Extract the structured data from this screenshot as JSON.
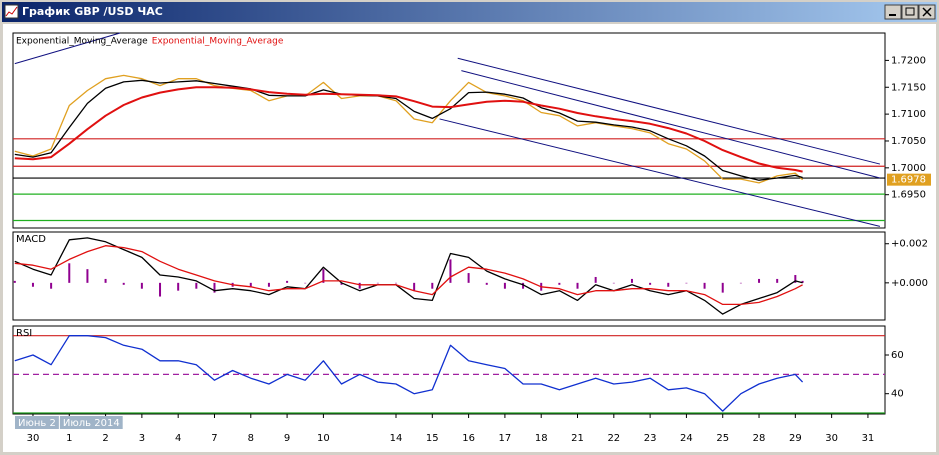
{
  "window": {
    "title": "График GBP /USD ЧАС"
  },
  "overlay": [
    "Июнь 2",
    "Июль 2014"
  ],
  "chart_data": [
    {
      "type": "line",
      "x": [
        -0.5,
        0,
        0.5,
        1,
        1.5,
        2,
        2.5,
        3,
        3.5,
        4,
        4.5,
        5,
        5.5,
        6,
        6.5,
        7,
        7.5,
        8,
        8.5,
        9,
        9.5,
        10,
        10.5,
        11,
        11.5,
        12,
        12.5,
        13,
        13.5,
        14,
        14.5,
        15,
        15.5,
        16,
        16.5,
        17,
        17.5,
        18,
        18.5,
        19,
        19.5,
        20,
        20.5,
        21,
        21.2
      ],
      "xlim": [
        -0.55,
        23.47
      ],
      "ylim": [
        1.6888,
        1.7251
      ],
      "yticks": [
        {
          "value": 1.72,
          "label": "1.7200"
        },
        {
          "value": 1.715,
          "label": "1.7150"
        },
        {
          "value": 1.71,
          "label": "1.7100"
        },
        {
          "value": 1.705,
          "label": "1.7050"
        },
        {
          "value": 1.7,
          "label": "1.7000"
        },
        {
          "value": 1.695,
          "label": "1.6950"
        }
      ],
      "series": [
        {
          "color": "#e0a020",
          "values": [
            1.7031,
            1.7022,
            1.7035,
            1.7116,
            1.7144,
            1.7166,
            1.7172,
            1.7166,
            1.7153,
            1.7166,
            1.7166,
            1.7153,
            1.7148,
            1.7144,
            1.7125,
            1.7134,
            1.7134,
            1.7159,
            1.7129,
            1.7134,
            1.7134,
            1.7125,
            1.7091,
            1.7084,
            1.7125,
            1.7159,
            1.714,
            1.7134,
            1.7125,
            1.7103,
            1.7097,
            1.7078,
            1.7084,
            1.7078,
            1.7073,
            1.7065,
            1.7045,
            1.7035,
            1.7013,
            1.6979,
            1.6979,
            1.6972,
            1.6985,
            1.699,
            1.6978
          ]
        },
        {
          "name": "Exponential_Moving_Average",
          "color": "#000000",
          "values": [
            1.7025,
            1.702,
            1.7028,
            1.7075,
            1.712,
            1.7148,
            1.716,
            1.7163,
            1.7158,
            1.716,
            1.7162,
            1.7157,
            1.7152,
            1.7147,
            1.7135,
            1.7134,
            1.7134,
            1.7145,
            1.7137,
            1.7135,
            1.7134,
            1.7129,
            1.7105,
            1.7092,
            1.711,
            1.714,
            1.7141,
            1.7137,
            1.713,
            1.7112,
            1.7102,
            1.7087,
            1.7085,
            1.708,
            1.7076,
            1.7069,
            1.7054,
            1.7041,
            1.7022,
            1.6995,
            1.6985,
            1.6977,
            1.6981,
            1.6986,
            1.6982
          ]
        },
        {
          "name": "Exponential_Moving_Average",
          "color": "#e01010",
          "values": [
            1.7018,
            1.7016,
            1.702,
            1.7045,
            1.7072,
            1.7097,
            1.7117,
            1.7131,
            1.714,
            1.7146,
            1.715,
            1.715,
            1.7149,
            1.7146,
            1.7141,
            1.7138,
            1.7136,
            1.7138,
            1.7137,
            1.7136,
            1.7135,
            1.7133,
            1.7124,
            1.7114,
            1.7113,
            1.7118,
            1.7123,
            1.7125,
            1.7123,
            1.7116,
            1.711,
            1.7102,
            1.7096,
            1.7091,
            1.7087,
            1.7082,
            1.7074,
            1.7064,
            1.705,
            1.7033,
            1.702,
            1.7008,
            1.7,
            1.6996,
            1.6993
          ]
        }
      ],
      "hlines": [
        {
          "value": 1.7054,
          "color": "#d02020"
        },
        {
          "value": 1.7003,
          "color": "#d02020"
        },
        {
          "value": 1.6981,
          "color": "#000000"
        },
        {
          "value": 1.6951,
          "color": "#20b020"
        },
        {
          "value": 1.6902,
          "color": "#20b020"
        }
      ],
      "trendlines": [
        {
          "x": [
            -0.5,
            2.4
          ],
          "y": [
            1.7194,
            1.7251
          ],
          "color": "#101080"
        },
        {
          "x": [
            11.7,
            23.33
          ],
          "y": [
            1.7204,
            1.7007
          ],
          "color": "#101080"
        },
        {
          "x": [
            11.8,
            23.33
          ],
          "y": [
            1.7181,
            1.6981
          ],
          "color": "#101080"
        },
        {
          "x": [
            11.2,
            23.33
          ],
          "y": [
            1.7091,
            1.6891
          ],
          "color": "#101080"
        }
      ],
      "last_price": {
        "value": 1.6978,
        "label": "1.6978"
      }
    },
    {
      "type": "line",
      "title": "MACD",
      "x": [
        -0.5,
        0,
        0.5,
        1,
        1.5,
        2,
        2.5,
        3,
        3.5,
        4,
        4.5,
        5,
        5.5,
        6,
        6.5,
        7,
        7.5,
        8,
        8.5,
        9,
        9.5,
        10,
        10.5,
        11,
        11.5,
        12,
        12.5,
        13,
        13.5,
        14,
        14.5,
        15,
        15.5,
        16,
        16.5,
        17,
        17.5,
        18,
        18.5,
        19,
        19.5,
        20,
        20.5,
        21,
        21.2
      ],
      "xlim": [
        -0.55,
        23.47
      ],
      "ylim": [
        -0.0019,
        0.0026
      ],
      "yticks": [
        {
          "value": 0.002,
          "label": "+0.002"
        },
        {
          "value": 0,
          "label": "+0.000"
        }
      ],
      "series": [
        {
          "style": "bar",
          "color": "#900090",
          "values": [
            0.0001,
            -0.0002,
            -0.0003,
            0.001,
            0.0007,
            0.0002,
            -0.0001,
            -0.0003,
            -0.0007,
            -0.0004,
            -0.0003,
            -0.0005,
            -0.0002,
            -0.0002,
            -0.0002,
            0.0001,
            0.0,
            0.0007,
            -0.0001,
            -0.0003,
            0.0,
            0.0,
            -0.0004,
            -0.0003,
            0.0012,
            0.0005,
            -0.0001,
            -0.0003,
            -0.0003,
            -0.0004,
            -0.0001,
            -0.0003,
            0.0003,
            0.0,
            0.0002,
            -0.0001,
            -0.0002,
            0.0,
            -0.0003,
            -0.0005,
            0.0,
            0.0002,
            0.0002,
            0.0004,
            0.0001
          ]
        },
        {
          "color": "#000000",
          "values": [
            0.0011,
            0.0007,
            0.0004,
            0.0022,
            0.0023,
            0.0021,
            0.0017,
            0.0013,
            0.0004,
            0.0003,
            0.0001,
            -0.0004,
            -0.0003,
            -0.0004,
            -0.0006,
            -0.0002,
            -0.0003,
            0.0008,
            0.0,
            -0.0004,
            -0.0001,
            -0.0001,
            -0.0008,
            -0.0009,
            0.0015,
            0.0013,
            0.0006,
            0.0002,
            -0.0001,
            -0.0006,
            -0.0004,
            -0.0009,
            -0.0001,
            -0.0004,
            -0.0001,
            -0.0004,
            -0.0006,
            -0.0004,
            -0.0009,
            -0.0016,
            -0.0011,
            -0.0008,
            -0.0005,
            0.0001,
            0.0
          ]
        },
        {
          "color": "#e01010",
          "values": [
            0.001,
            0.0009,
            0.0007,
            0.0012,
            0.0016,
            0.0019,
            0.0018,
            0.0016,
            0.0011,
            0.0007,
            0.0004,
            0.0001,
            -0.0001,
            -0.0002,
            -0.0004,
            -0.0003,
            -0.0003,
            0.0001,
            0.0001,
            -0.0001,
            -0.0001,
            -0.0001,
            -0.0004,
            -0.0006,
            0.0003,
            0.0008,
            0.0007,
            0.0005,
            0.0002,
            -0.0002,
            -0.0003,
            -0.0006,
            -0.0004,
            -0.0004,
            -0.0003,
            -0.0003,
            -0.0004,
            -0.0004,
            -0.0006,
            -0.0011,
            -0.0011,
            -0.001,
            -0.0007,
            -0.0003,
            -0.0001
          ]
        }
      ]
    },
    {
      "type": "line",
      "title": "RSI",
      "x": [
        -0.5,
        0,
        0.5,
        1,
        1.5,
        2,
        2.5,
        3,
        3.5,
        4,
        4.5,
        5,
        5.5,
        6,
        6.5,
        7,
        7.5,
        8,
        8.5,
        9,
        9.5,
        10,
        10.5,
        11,
        11.5,
        12,
        12.5,
        13,
        13.5,
        14,
        14.5,
        15,
        15.5,
        16,
        16.5,
        17,
        17.5,
        18,
        18.5,
        19,
        19.5,
        20,
        20.5,
        21,
        21.2
      ],
      "xlim": [
        -0.55,
        23.47
      ],
      "ylim": [
        29.5,
        75
      ],
      "yticks": [
        60,
        40
      ],
      "series": [
        {
          "color": "#1030d0",
          "values": [
            57,
            60,
            55,
            70,
            70,
            69,
            65,
            63,
            57,
            57,
            55,
            47,
            52,
            48,
            45,
            50,
            47,
            57,
            45,
            50,
            46,
            45,
            40,
            42,
            65,
            57,
            55,
            53,
            45,
            45,
            42,
            45,
            48,
            45,
            46,
            48,
            42,
            43,
            40,
            31,
            40,
            45,
            48,
            50,
            46
          ]
        }
      ],
      "hlines": [
        {
          "value": 70,
          "color": "#d02020"
        },
        {
          "value": 50,
          "color": "#a020a0",
          "style": "dashed"
        },
        {
          "value": 30,
          "color": "#20a020"
        }
      ],
      "xticks": [
        {
          "value": 0,
          "label": "30"
        },
        {
          "value": 1,
          "label": "1"
        },
        {
          "value": 2,
          "label": "2"
        },
        {
          "value": 3,
          "label": "3"
        },
        {
          "value": 4,
          "label": "4"
        },
        {
          "value": 5,
          "label": "7"
        },
        {
          "value": 6,
          "label": "8"
        },
        {
          "value": 7,
          "label": "9"
        },
        {
          "value": 8,
          "label": "10"
        },
        {
          "value": 10,
          "label": "14"
        },
        {
          "value": 11,
          "label": "15"
        },
        {
          "value": 12,
          "label": "16"
        },
        {
          "value": 13,
          "label": "17"
        },
        {
          "value": 14,
          "label": "18"
        },
        {
          "value": 15,
          "label": "21"
        },
        {
          "value": 16,
          "label": "22"
        },
        {
          "value": 17,
          "label": "23"
        },
        {
          "value": 18,
          "label": "24"
        },
        {
          "value": 19,
          "label": "25"
        },
        {
          "value": 20,
          "label": "28"
        },
        {
          "value": 21,
          "label": "29"
        },
        {
          "value": 22,
          "label": "30"
        },
        {
          "value": 23,
          "label": "31"
        }
      ]
    }
  ]
}
